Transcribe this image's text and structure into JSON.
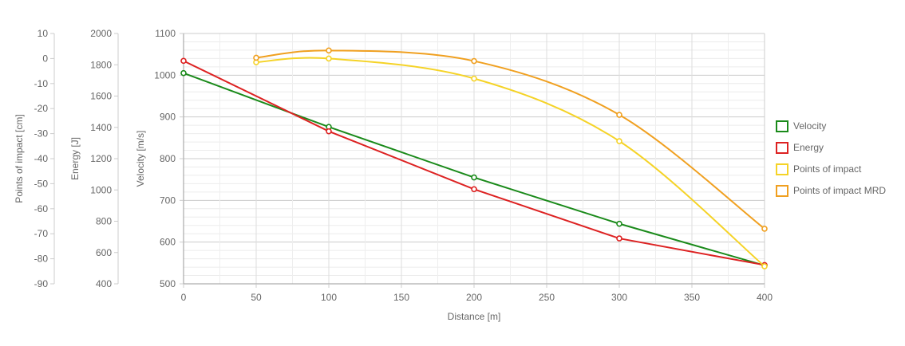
{
  "chart_data": {
    "type": "line",
    "xlabel": "Distance [m]",
    "x_ticks": [
      "0",
      "50",
      "100",
      "150",
      "200",
      "250",
      "300",
      "350",
      "400"
    ],
    "xlim": [
      0,
      400
    ],
    "axes": [
      {
        "id": "impact",
        "label": "Points of impact [cm]",
        "min": -90,
        "max": 10,
        "ticks": [
          "10",
          "0",
          "-10",
          "-20",
          "-30",
          "-40",
          "-50",
          "-60",
          "-70",
          "-80",
          "-90"
        ]
      },
      {
        "id": "energy",
        "label": "Energy [J]",
        "min": 400,
        "max": 2000,
        "ticks": [
          "2000",
          "1800",
          "1600",
          "1400",
          "1200",
          "1000",
          "800",
          "600",
          "400"
        ]
      },
      {
        "id": "velocity",
        "label": "Velocity [m/s]",
        "min": 500,
        "max": 1100,
        "ticks": [
          "1100",
          "1000",
          "900",
          "800",
          "700",
          "600",
          "500"
        ]
      }
    ],
    "grid": true,
    "legend_position": "right",
    "series": [
      {
        "name": "Velocity",
        "axis": "velocity",
        "color": "#1a8a1a",
        "smooth": false,
        "points": [
          [
            0,
            1005
          ],
          [
            100,
            876
          ],
          [
            200,
            755
          ],
          [
            300,
            644
          ],
          [
            400,
            544
          ]
        ]
      },
      {
        "name": "Energy",
        "axis": "energy",
        "color": "#dd2222",
        "smooth": false,
        "points": [
          [
            0,
            1825
          ],
          [
            100,
            1375
          ],
          [
            200,
            1005
          ],
          [
            300,
            690
          ],
          [
            400,
            520
          ]
        ]
      },
      {
        "name": "Points of impact",
        "axis": "impact",
        "color": "#f5d327",
        "smooth": true,
        "points": [
          [
            50,
            -1.5
          ],
          [
            100,
            0
          ],
          [
            200,
            -8
          ],
          [
            300,
            -33
          ],
          [
            400,
            -83
          ]
        ]
      },
      {
        "name": "Points of impact MRD",
        "axis": "impact",
        "color": "#f0a020",
        "smooth": true,
        "points": [
          [
            50,
            0.3
          ],
          [
            100,
            3.2
          ],
          [
            200,
            -1
          ],
          [
            300,
            -22.5
          ],
          [
            400,
            -68
          ]
        ]
      }
    ]
  }
}
